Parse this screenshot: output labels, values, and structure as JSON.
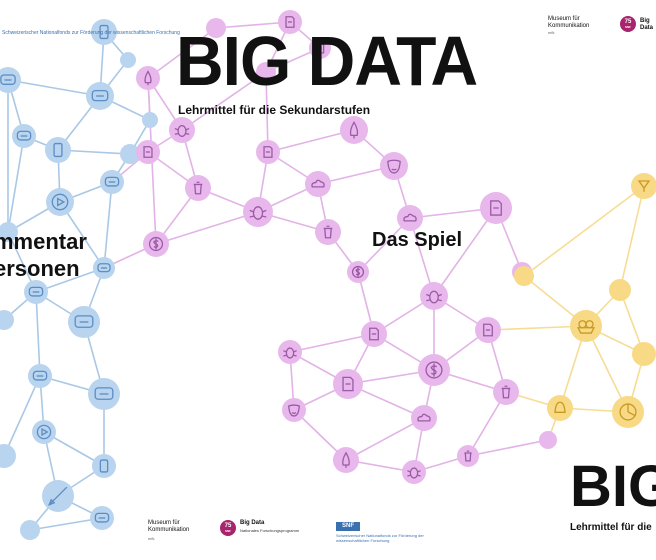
{
  "poster_center": {
    "title": "BIG DATA",
    "subtitle": "Lehrmittel für die Sekundarstufen",
    "game_label": "Das Spiel"
  },
  "poster_left": {
    "line1": "mmentar",
    "line2": "ersonen"
  },
  "poster_right": {
    "title": "BIG",
    "subtitle": "Lehrmittel für die"
  },
  "logos": {
    "museum": "Museum für Kommunikation",
    "badge_75": "75",
    "badge_sub": "SNF",
    "bigdata_name": "Big Data",
    "bigdata_sub": "Nationales Forschungsprogramm",
    "snf_box": "SNF",
    "snf_text": "Schweizerischer Nationalfonds zur Förderung der wissenschaftlichen Forschung",
    "tiny": "mfk"
  },
  "palette": {
    "blue": "#b9d4ee",
    "pink": "#e8b8ec",
    "yellow": "#f8d985"
  }
}
